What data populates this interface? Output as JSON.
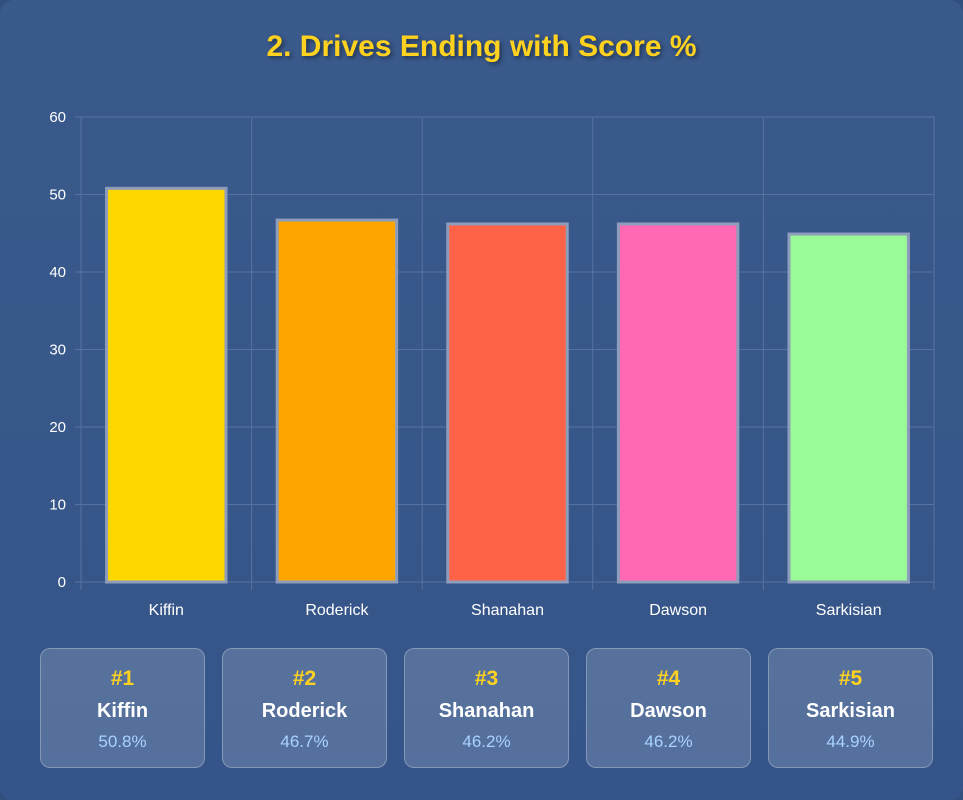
{
  "title": "2. Drives Ending with Score %",
  "colors": {
    "background": "#37578a",
    "title": "#ffd21f",
    "bar_border": "#8d9dbb",
    "grid": "#5672a0",
    "tick_text": "#ffffff",
    "card_value": "#a9d2ff"
  },
  "chart_data": {
    "type": "bar",
    "title": "2. Drives Ending with Score %",
    "categories": [
      "Kiffin",
      "Roderick",
      "Shanahan",
      "Dawson",
      "Sarkisian"
    ],
    "values": [
      50.8,
      46.7,
      46.2,
      46.2,
      44.9
    ],
    "bar_colors": [
      "#ffd700",
      "#ffa500",
      "#ff6347",
      "#ff69b4",
      "#98fb98"
    ],
    "ylim": [
      0,
      60
    ],
    "yticks": [
      0,
      10,
      20,
      30,
      40,
      50,
      60
    ],
    "grid": true,
    "legend": "none"
  },
  "cards": [
    {
      "rank": "#1",
      "name": "Kiffin",
      "value": "50.8%"
    },
    {
      "rank": "#2",
      "name": "Roderick",
      "value": "46.7%"
    },
    {
      "rank": "#3",
      "name": "Shanahan",
      "value": "46.2%"
    },
    {
      "rank": "#4",
      "name": "Dawson",
      "value": "46.2%"
    },
    {
      "rank": "#5",
      "name": "Sarkisian",
      "value": "44.9%"
    }
  ]
}
